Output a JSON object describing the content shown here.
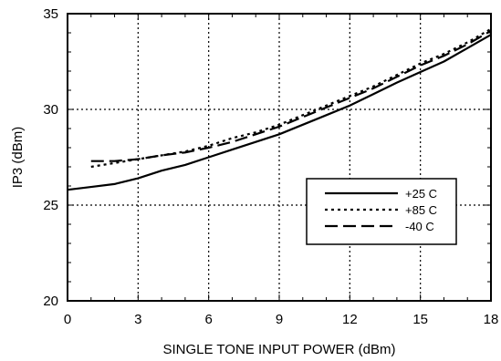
{
  "chart_data": {
    "type": "line",
    "title": "",
    "xlabel": "SINGLE TONE INPUT POWER (dBm)",
    "ylabel": "IP3 (dBm)",
    "xlim": [
      0,
      18
    ],
    "ylim": [
      20,
      35
    ],
    "x_ticks": [
      0,
      3,
      6,
      9,
      12,
      15,
      18
    ],
    "y_ticks": [
      20,
      25,
      30,
      35
    ],
    "x_tick_labels": [
      "0",
      "3",
      "6",
      "9",
      "12",
      "15",
      "18"
    ],
    "y_tick_labels": [
      "20",
      "25",
      "30",
      "35"
    ],
    "grid": true,
    "legend_position": "right",
    "series": [
      {
        "name": "+25 C",
        "style": "solid",
        "x": [
          0,
          1,
          2,
          3,
          4,
          5,
          6,
          7,
          8,
          9,
          10,
          11,
          12,
          13,
          14,
          15,
          16,
          17,
          18
        ],
        "y": [
          25.8,
          25.95,
          26.1,
          26.4,
          26.8,
          27.1,
          27.5,
          27.9,
          28.3,
          28.7,
          29.2,
          29.7,
          30.2,
          30.8,
          31.4,
          31.95,
          32.5,
          33.2,
          33.9
        ]
      },
      {
        "name": "+85 C",
        "style": "dotted",
        "x": [
          1,
          2,
          3,
          4,
          5,
          6,
          7,
          8,
          9,
          10,
          11,
          12,
          13,
          14,
          15,
          16,
          17,
          18
        ],
        "y": [
          27.0,
          27.2,
          27.4,
          27.6,
          27.8,
          28.1,
          28.5,
          28.8,
          29.2,
          29.7,
          30.2,
          30.7,
          31.2,
          31.8,
          32.4,
          32.9,
          33.5,
          34.2
        ]
      },
      {
        "name": "-40 C",
        "style": "dashed",
        "x": [
          1,
          2,
          3,
          4,
          5,
          6,
          7,
          8,
          9,
          10,
          11,
          12,
          13,
          14,
          15,
          16,
          17,
          18
        ],
        "y": [
          27.3,
          27.3,
          27.4,
          27.6,
          27.75,
          28.0,
          28.3,
          28.7,
          29.1,
          29.6,
          30.1,
          30.6,
          31.1,
          31.7,
          32.3,
          32.8,
          33.4,
          34.1
        ]
      }
    ]
  },
  "colors": {
    "line": "#000000",
    "grid": "#000000",
    "background": "#ffffff"
  }
}
